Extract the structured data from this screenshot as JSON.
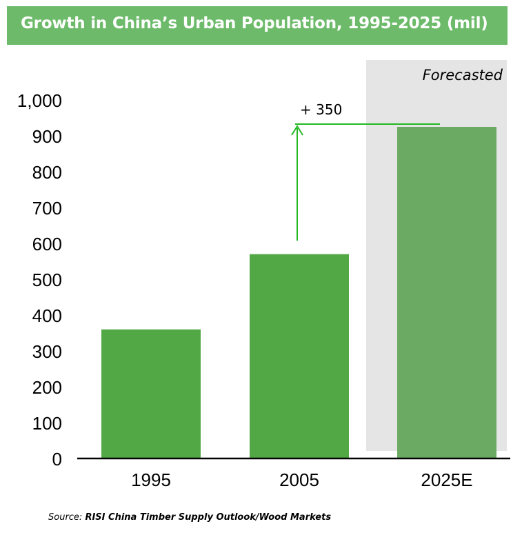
{
  "chart_data": {
    "type": "bar",
    "title": "Growth in China’s Urban Population, 1995-2025 (mil)",
    "categories": [
      "1995",
      "2005",
      "2025E"
    ],
    "values": [
      360,
      570,
      925
    ],
    "ylim": [
      0,
      1000
    ],
    "yticks": [
      "0",
      "100",
      "200",
      "300",
      "400",
      "500",
      "600",
      "700",
      "800",
      "900",
      "1,000"
    ],
    "grid": false,
    "forecast_region_label": "Forecasted",
    "annotation": "+ 350",
    "colors": {
      "bar": "#53a846",
      "forecast_bar": "#6aaa63",
      "forecast_shade": "#e5e5e5",
      "title_background": "#6dbb6a",
      "arrow": "#22b822"
    }
  },
  "source": {
    "prefix": "Source: ",
    "text": "RISI China Timber Supply Outlook/Wood Markets"
  }
}
